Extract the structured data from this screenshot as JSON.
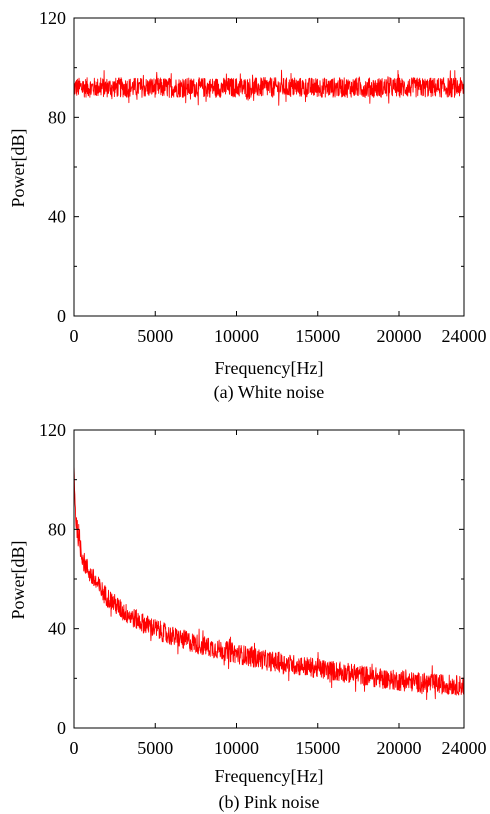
{
  "chart_data": [
    {
      "type": "line",
      "caption": "(a) White noise",
      "xlabel": "Frequency[Hz]",
      "ylabel": "Power[dB]",
      "xlim": [
        0,
        24000
      ],
      "ylim": [
        0,
        120
      ],
      "xticks": [
        0,
        5000,
        10000,
        15000,
        20000,
        24000
      ],
      "yticks": [
        0,
        40,
        80,
        120
      ],
      "grid": false,
      "series_color": "#ff0000",
      "series": [
        {
          "x": [
            0,
            1000,
            2000,
            3000,
            4000,
            5000,
            6000,
            7000,
            8000,
            9000,
            10000,
            11000,
            12000,
            13000,
            14000,
            15000,
            16000,
            17000,
            18000,
            19000,
            20000,
            21000,
            22000,
            23000,
            24000
          ],
          "values": [
            92,
            92,
            92,
            92,
            92,
            92,
            92,
            92,
            92,
            92,
            92,
            92,
            92,
            92,
            92,
            92,
            92,
            92,
            92,
            92,
            92,
            92,
            92,
            92,
            92
          ],
          "spread": [
            4,
            4,
            4,
            4,
            4,
            4,
            4,
            4,
            4,
            4,
            4,
            4,
            4,
            4,
            4,
            4,
            4,
            4,
            4,
            4,
            4,
            4,
            4,
            4,
            4
          ]
        }
      ]
    },
    {
      "type": "line",
      "caption": "(b) Pink noise",
      "xlabel": "Frequency[Hz]",
      "ylabel": "Power[dB]",
      "xlim": [
        0,
        24000
      ],
      "ylim": [
        0,
        120
      ],
      "xticks": [
        0,
        5000,
        10000,
        15000,
        20000,
        24000
      ],
      "yticks": [
        0,
        40,
        80,
        120
      ],
      "grid": false,
      "series_color": "#ff0000",
      "series": [
        {
          "x": [
            0,
            100,
            300,
            600,
            1000,
            1500,
            2000,
            3000,
            4000,
            5000,
            6000,
            7000,
            8000,
            10000,
            12000,
            14000,
            16000,
            18000,
            20000,
            22000,
            24000
          ],
          "values": [
            105,
            85,
            75,
            67,
            62,
            57,
            53,
            47,
            43,
            40,
            37,
            35,
            33,
            30,
            27,
            25,
            23,
            21,
            19,
            18,
            17
          ],
          "spread": [
            3,
            4,
            4,
            4,
            4,
            4,
            4,
            4,
            4,
            4,
            4,
            4,
            4,
            4,
            4,
            4,
            4,
            4,
            4,
            4,
            4
          ]
        }
      ]
    }
  ]
}
